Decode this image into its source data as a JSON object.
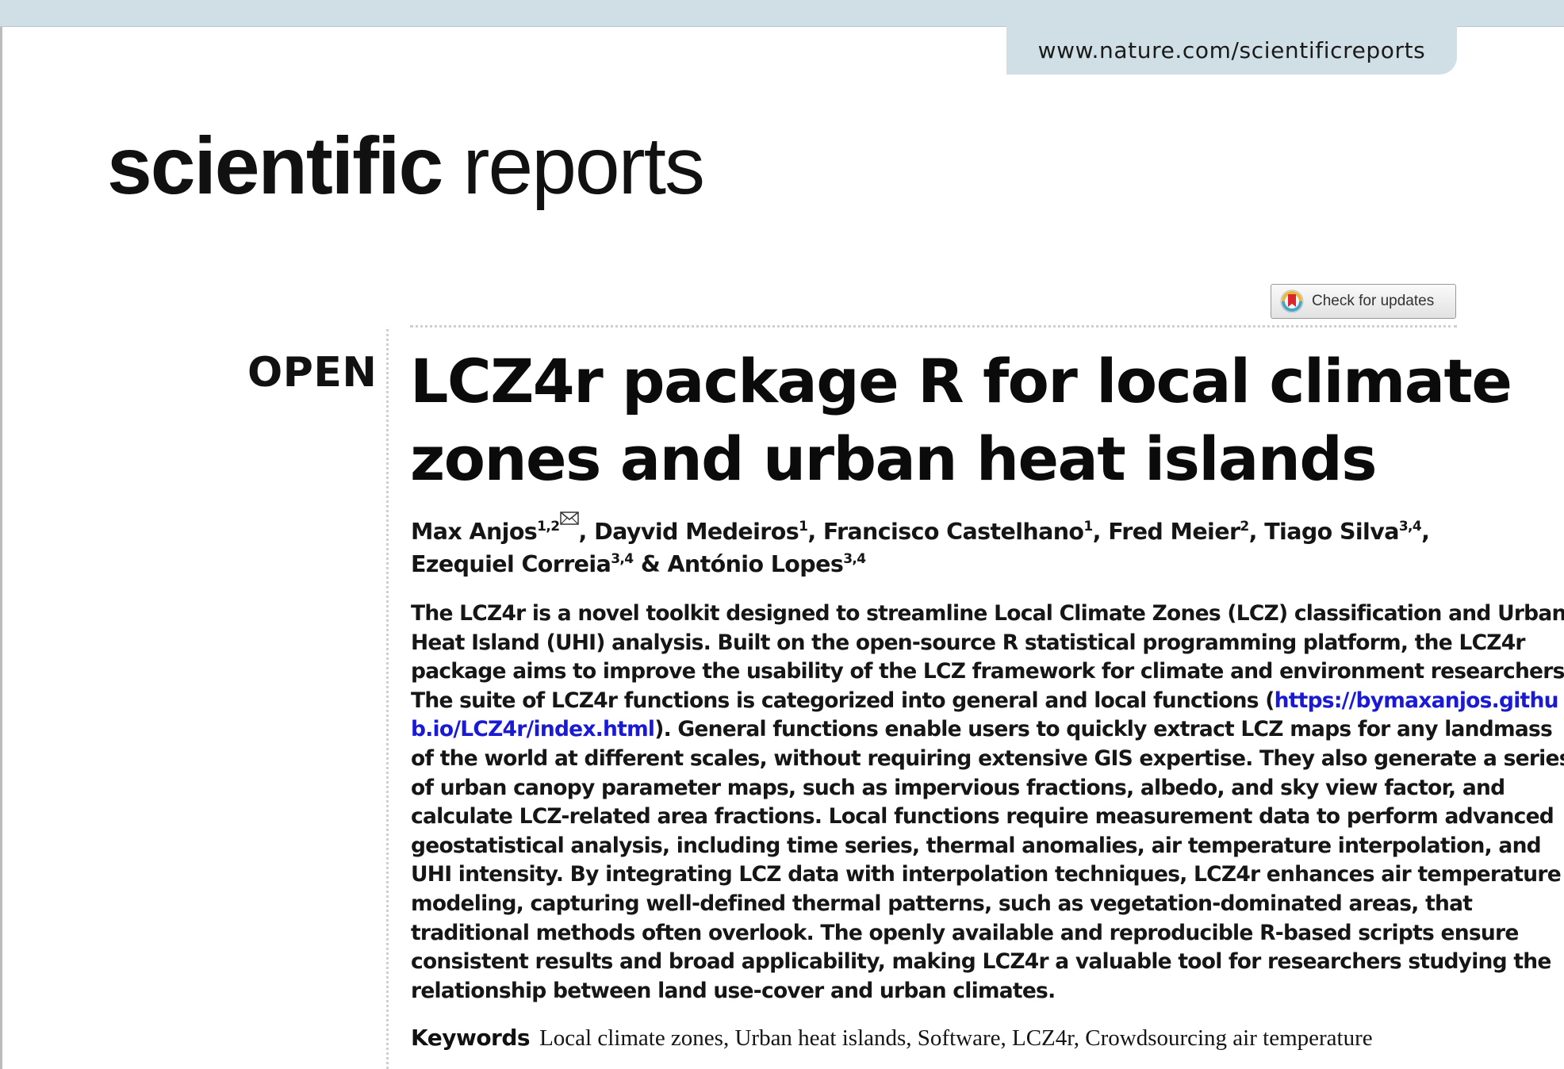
{
  "header": {
    "url": "www.nature.com/scientificreports"
  },
  "journal": {
    "name_bold": "scientific",
    "name_light": " reports"
  },
  "check_updates": {
    "label": "Check for updates"
  },
  "access": {
    "label": "OPEN"
  },
  "article": {
    "title_lines": [
      "LCZ4r package R for local climate",
      "zones and urban heat islands"
    ],
    "authors": [
      {
        "name": "Max Anjos",
        "aff": "1,2",
        "corresponding": true
      },
      {
        "name": "Dayvid Medeiros",
        "aff": "1"
      },
      {
        "name": "Francisco Castelhano",
        "aff": "1"
      },
      {
        "name": "Fred Meier",
        "aff": "2"
      },
      {
        "name": "Tiago Silva",
        "aff": "3,4"
      },
      {
        "name": "Ezequiel Correia",
        "aff": "3,4"
      },
      {
        "name": "António Lopes",
        "aff": "3,4"
      }
    ],
    "author_sep": ", ",
    "author_and": " & ",
    "abstract_lines": [
      "The LCZ4r is a novel toolkit designed to streamline Local Climate Zones (LCZ) classification and Urban",
      "Heat Island (UHI) analysis. Built on the open-source R statistical programming platform, the LCZ4r",
      "package aims to improve the usability of the LCZ framework for climate and environment researchers.",
      "The suite of LCZ4r functions is categorized into general and local functions (",
      "https://bymaxanjos.githu",
      "b.io/LCZ4r/index.html",
      "). General functions enable users to quickly extract LCZ maps for any landmass",
      "of the world at different scales, without requiring extensive GIS expertise. They also generate a series",
      "of urban canopy parameter maps, such as impervious fractions, albedo, and sky view factor, and",
      "calculate LCZ-related area fractions. Local functions require measurement data to perform advanced",
      "geostatistical analysis, including time series, thermal anomalies, air temperature interpolation, and",
      "UHI intensity. By integrating LCZ data with interpolation techniques, LCZ4r enhances air temperature",
      "modeling, capturing well-defined thermal patterns, such as vegetation-dominated areas, that",
      "traditional methods often overlook. The openly available and reproducible R-based scripts ensure",
      "consistent results and broad applicability, making LCZ4r a valuable tool for researchers studying the",
      "relationship between land use-cover and urban climates."
    ],
    "keywords_label": "Keywords",
    "keywords": "Local climate zones, Urban heat islands, Software, LCZ4r, Crowdsourcing air temperature"
  },
  "colors": {
    "header_band": "#cfdfe5",
    "link": "#1a1ad6",
    "text": "#111111"
  },
  "icons": {
    "check_updates": "crossmark-icon",
    "corresponding": "mail-icon"
  }
}
